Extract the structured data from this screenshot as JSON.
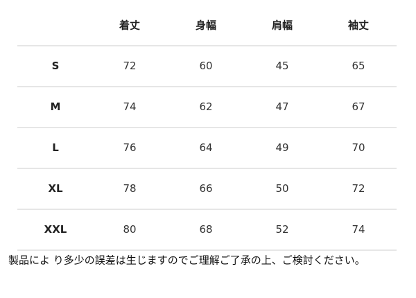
{
  "table": {
    "columns": [
      "着丈",
      "身幅",
      "肩幅",
      "袖丈"
    ],
    "rows": [
      {
        "size": "S",
        "values": [
          72,
          60,
          45,
          65
        ]
      },
      {
        "size": "M",
        "values": [
          74,
          62,
          47,
          67
        ]
      },
      {
        "size": "L",
        "values": [
          76,
          64,
          49,
          70
        ]
      },
      {
        "size": "XL",
        "values": [
          78,
          66,
          50,
          72
        ]
      },
      {
        "size": "XXL",
        "values": [
          80,
          68,
          52,
          74
        ]
      }
    ]
  },
  "note": "製品によ り多少の誤差は生じますのでご理解ご了承の上、ご検討ください。"
}
